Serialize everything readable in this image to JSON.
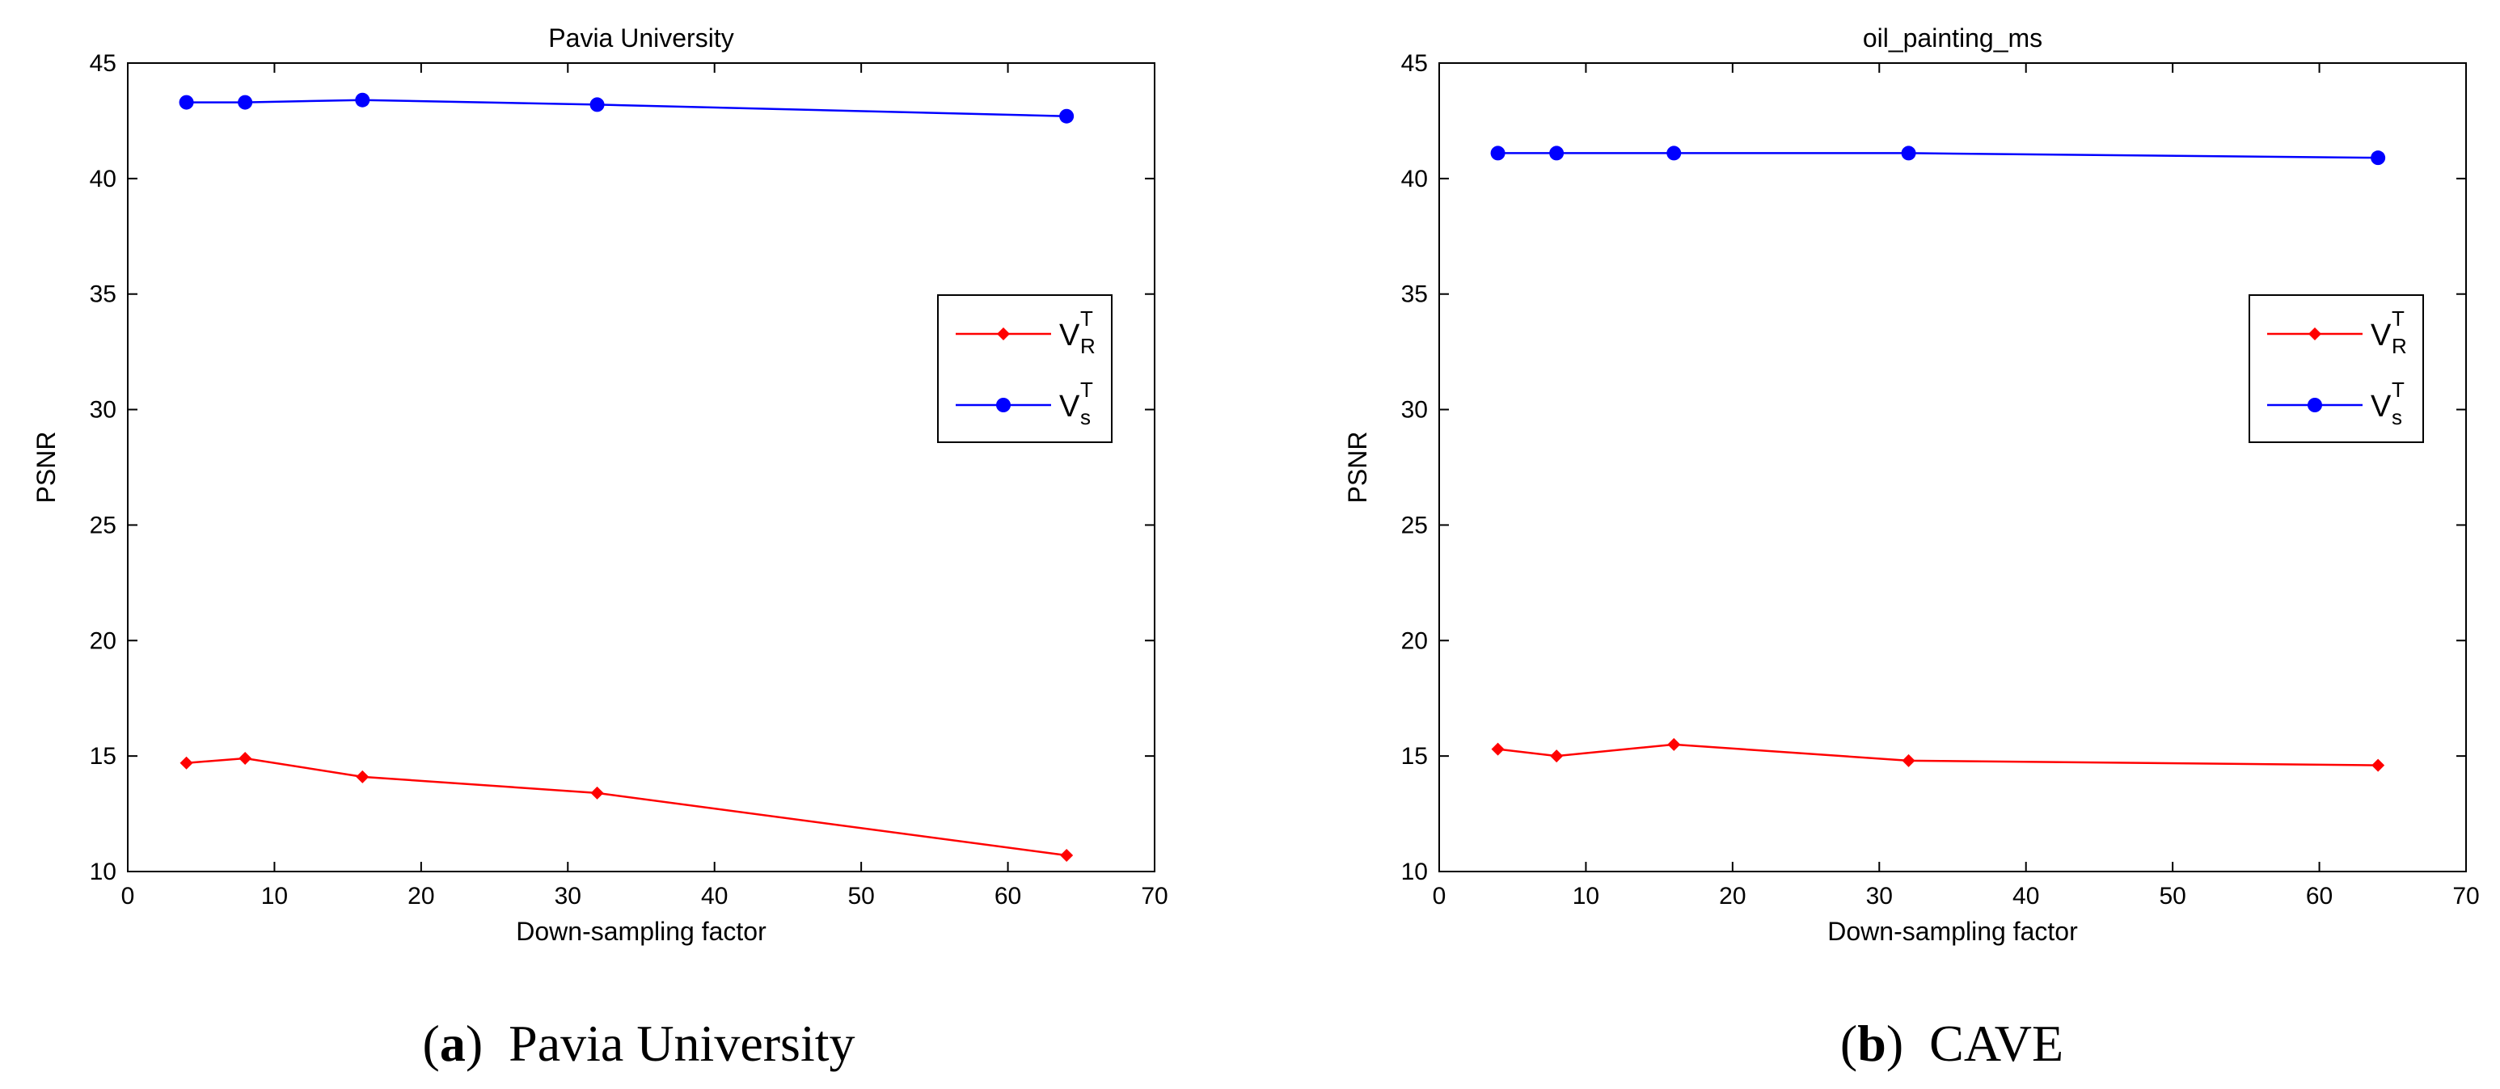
{
  "chart_data": [
    {
      "type": "line",
      "title": "Pavia University",
      "xlabel": "Down-sampling factor",
      "ylabel": "PSNR",
      "xlim": [
        0,
        70
      ],
      "ylim": [
        10,
        45
      ],
      "xticks": [
        "0",
        "10",
        "20",
        "30",
        "40",
        "50",
        "60",
        "70"
      ],
      "yticks": [
        "10",
        "15",
        "20",
        "25",
        "30",
        "35",
        "40",
        "45"
      ],
      "legend_position": "center-right",
      "x": [
        4,
        8,
        16,
        32,
        64
      ],
      "series": [
        {
          "name": "V",
          "sup": "T",
          "sub": "R",
          "color": "#ff0000",
          "marker": "diamond",
          "values": [
            14.7,
            14.9,
            14.1,
            13.4,
            10.7
          ]
        },
        {
          "name": "V",
          "sup": "T",
          "sub": "s",
          "color": "#0000ff",
          "marker": "circle",
          "values": [
            43.3,
            43.3,
            43.4,
            43.2,
            42.7
          ]
        }
      ],
      "caption": {
        "letter": "a",
        "text": "Pavia University"
      }
    },
    {
      "type": "line",
      "title": "oil_painting_ms",
      "xlabel": "Down-sampling factor",
      "ylabel": "PSNR",
      "xlim": [
        0,
        70
      ],
      "ylim": [
        10,
        45
      ],
      "xticks": [
        "0",
        "10",
        "20",
        "30",
        "40",
        "50",
        "60",
        "70"
      ],
      "yticks": [
        "10",
        "15",
        "20",
        "25",
        "30",
        "35",
        "40",
        "45"
      ],
      "legend_position": "center-right",
      "x": [
        4,
        8,
        16,
        32,
        64
      ],
      "series": [
        {
          "name": "V",
          "sup": "T",
          "sub": "R",
          "color": "#ff0000",
          "marker": "diamond",
          "values": [
            15.3,
            15.0,
            15.5,
            14.8,
            14.6
          ]
        },
        {
          "name": "V",
          "sup": "T",
          "sub": "s",
          "color": "#0000ff",
          "marker": "circle",
          "values": [
            41.1,
            41.1,
            41.1,
            41.1,
            40.9
          ]
        }
      ],
      "caption": {
        "letter": "b",
        "text": "CAVE"
      }
    }
  ]
}
